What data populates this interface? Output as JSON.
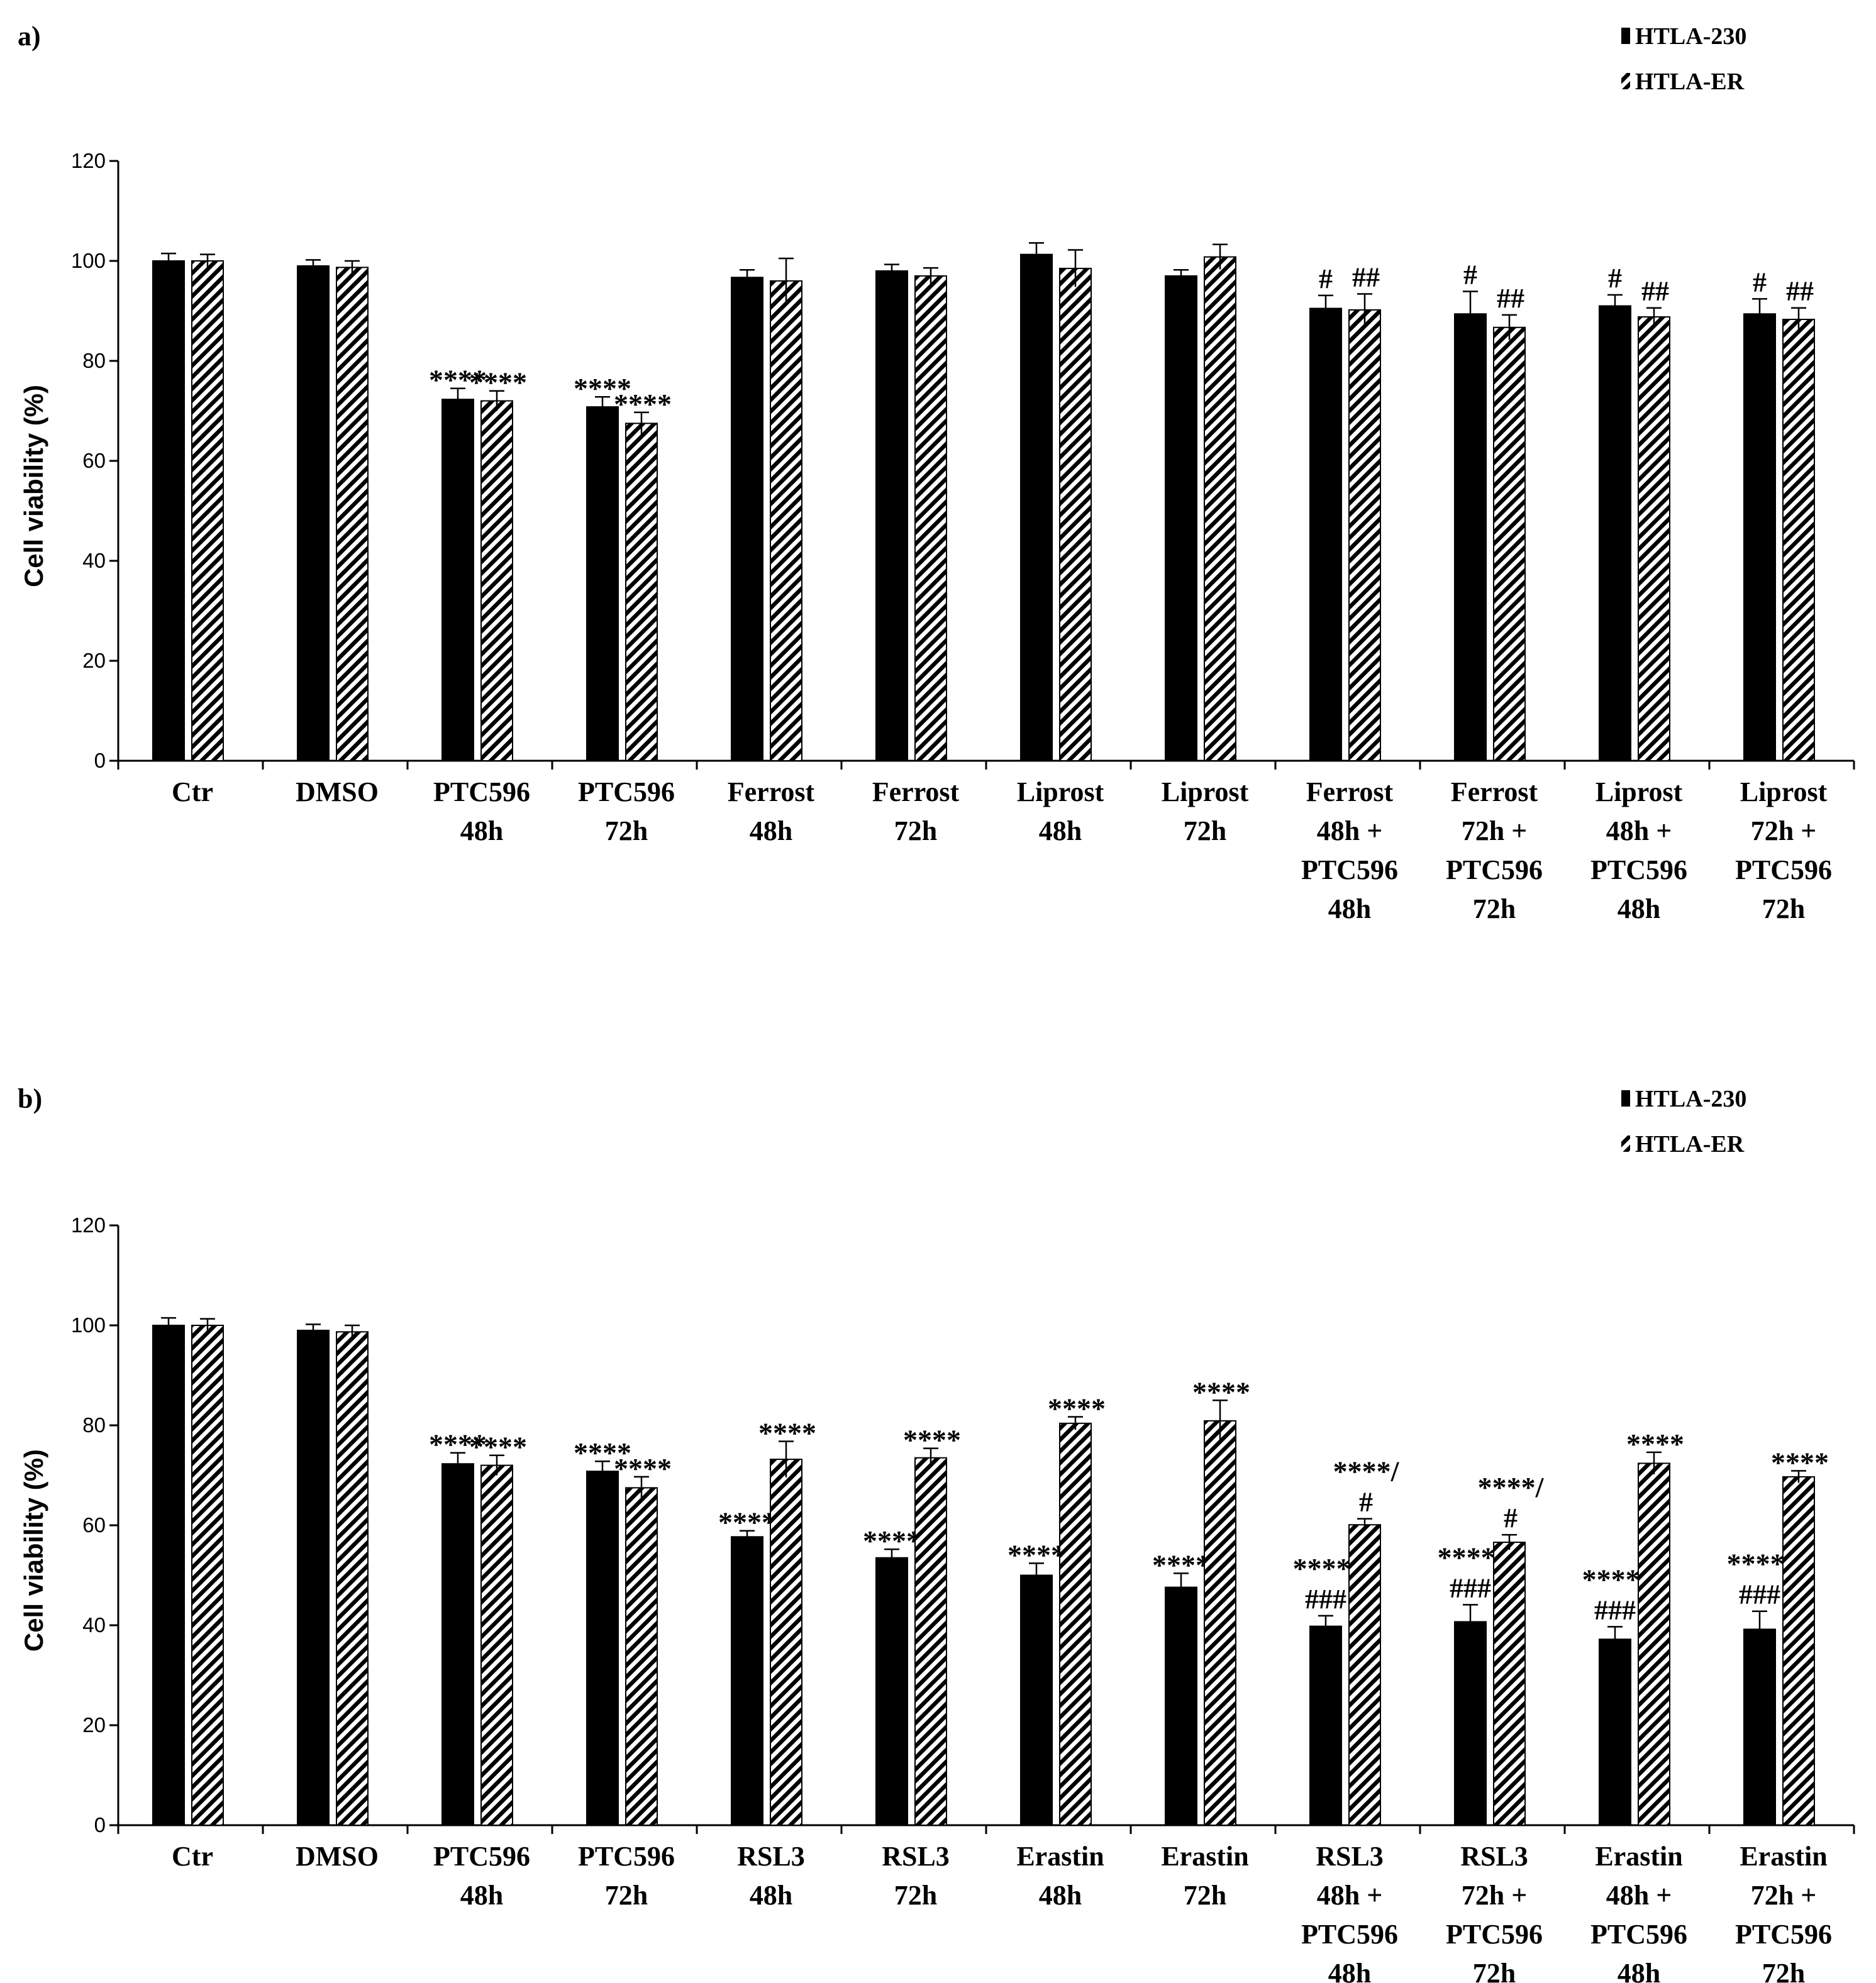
{
  "colors": {
    "htla230": "#000000",
    "htla_er": "#ffffff",
    "axis": "#000000"
  },
  "chart_data": [
    {
      "panel_label": "a)",
      "type": "bar",
      "ylabel": "Cell viability (%)",
      "ylim": [
        0,
        120
      ],
      "yticks": [
        "0",
        "20",
        "40",
        "60",
        "80",
        "100",
        "120"
      ],
      "legend": [
        "HTLA-230",
        "HTLA-ER"
      ],
      "legend_position": "top-right",
      "categories": [
        [
          "Ctr"
        ],
        [
          "DMSO"
        ],
        [
          "PTC596",
          "48h"
        ],
        [
          "PTC596",
          "72h"
        ],
        [
          "Ferrost",
          "48h"
        ],
        [
          "Ferrost",
          "72h"
        ],
        [
          "Liprost",
          "48h"
        ],
        [
          "Liprost",
          "72h"
        ],
        [
          "Ferrost",
          "48h +",
          "PTC596",
          "48h"
        ],
        [
          "Ferrost",
          "72h +",
          "PTC596",
          "72h"
        ],
        [
          "Liprost",
          "48h +",
          "PTC596",
          "48h"
        ],
        [
          "Liprost",
          "72h +",
          "PTC596",
          "72h"
        ]
      ],
      "series": [
        {
          "name": "HTLA-230",
          "pattern": "solid",
          "values": [
            100,
            99,
            72.3,
            70.8,
            96.7,
            98,
            101.3,
            97,
            90.5,
            89.4,
            91,
            89.4
          ],
          "errors": [
            1.5,
            1.2,
            2.2,
            2,
            1.5,
            1.3,
            2.3,
            1.2,
            2.6,
            4.5,
            2.2,
            3
          ],
          "annotations": [
            [],
            [],
            [
              "****"
            ],
            [
              "****"
            ],
            [],
            [],
            [],
            [],
            [
              "#"
            ],
            [
              "#"
            ],
            [
              "#"
            ],
            [
              "#"
            ]
          ]
        },
        {
          "name": "HTLA-ER",
          "pattern": "hatched",
          "values": [
            100,
            98.7,
            72,
            67.5,
            96,
            97,
            98.5,
            100.8,
            90.2,
            86.7,
            88.8,
            88.3
          ],
          "errors": [
            1.3,
            1.3,
            2,
            2.2,
            4.5,
            1.6,
            3.7,
            2.5,
            3.2,
            2.5,
            1.8,
            2.3
          ],
          "annotations": [
            [],
            [],
            [
              "****"
            ],
            [
              "****"
            ],
            [],
            [],
            [],
            [],
            [
              "##"
            ],
            [
              "##"
            ],
            [
              "##"
            ],
            [
              "##"
            ]
          ]
        }
      ]
    },
    {
      "panel_label": "b)",
      "type": "bar",
      "ylabel": "Cell viability (%)",
      "ylim": [
        0,
        120
      ],
      "yticks": [
        "0",
        "20",
        "40",
        "60",
        "80",
        "100",
        "120"
      ],
      "legend": [
        "HTLA-230",
        "HTLA-ER"
      ],
      "legend_position": "top-right",
      "categories": [
        [
          "Ctr"
        ],
        [
          "DMSO"
        ],
        [
          "PTC596",
          "48h"
        ],
        [
          "PTC596",
          "72h"
        ],
        [
          "RSL3",
          "48h"
        ],
        [
          "RSL3",
          "72h"
        ],
        [
          "Erastin",
          "48h"
        ],
        [
          "Erastin",
          "72h"
        ],
        [
          "RSL3",
          "48h +",
          "PTC596",
          "48h"
        ],
        [
          "RSL3",
          "72h +",
          "PTC596",
          "72h"
        ],
        [
          "Erastin",
          "48h +",
          "PTC596",
          "48h"
        ],
        [
          "Erastin",
          "72h +",
          "PTC596",
          "72h"
        ]
      ],
      "series": [
        {
          "name": "HTLA-230",
          "pattern": "solid",
          "values": [
            100,
            99,
            72.3,
            70.8,
            57.7,
            53.5,
            50,
            47.6,
            39.8,
            40.7,
            37.2,
            39.2
          ],
          "errors": [
            1.5,
            1.2,
            2.2,
            2,
            1.2,
            1.7,
            2.4,
            2.8,
            2.1,
            3.4,
            2.5,
            3.6
          ],
          "annotations": [
            [],
            [],
            [
              "****"
            ],
            [
              "****"
            ],
            [
              "****"
            ],
            [
              "****"
            ],
            [
              "****"
            ],
            [
              "****"
            ],
            [
              "****/",
              "###"
            ],
            [
              "****/",
              "###"
            ],
            [
              "****/",
              "###"
            ],
            [
              "****/",
              "###"
            ]
          ]
        },
        {
          "name": "HTLA-ER",
          "pattern": "hatched",
          "values": [
            100,
            98.7,
            72,
            67.5,
            73.2,
            73.5,
            80.4,
            80.9,
            60.1,
            56.6,
            72.4,
            69.7
          ],
          "errors": [
            1.3,
            1.3,
            2,
            2.2,
            3.6,
            1.9,
            1.3,
            4.1,
            1.2,
            1.5,
            2.2,
            1.2
          ],
          "annotations": [
            [],
            [],
            [
              "****"
            ],
            [
              "****"
            ],
            [
              "****"
            ],
            [
              "****"
            ],
            [
              "****"
            ],
            [
              "****"
            ],
            [
              "****/",
              "#"
            ],
            [
              "****/",
              "#"
            ],
            [
              "****"
            ],
            [
              "****"
            ]
          ]
        }
      ]
    }
  ]
}
